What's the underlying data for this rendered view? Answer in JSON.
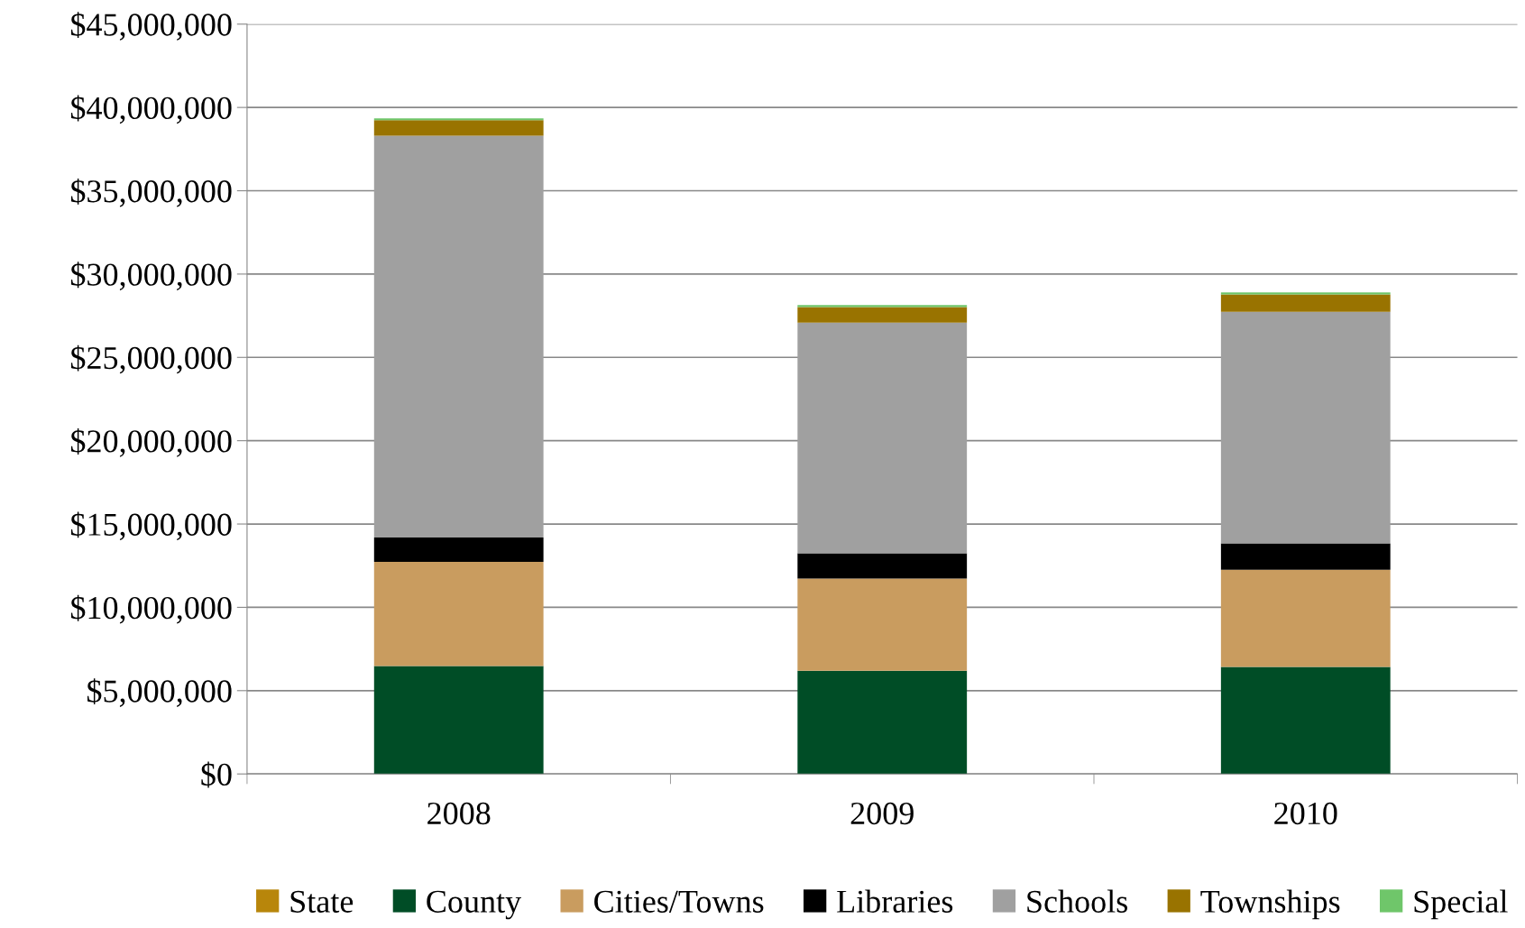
{
  "chart_data": {
    "type": "bar",
    "stacked": true,
    "categories": [
      "2008",
      "2009",
      "2010"
    ],
    "series": [
      {
        "name": "State",
        "color": "#b8860b",
        "values": [
          0,
          0,
          0
        ]
      },
      {
        "name": "County",
        "color": "#004d26",
        "values": [
          6480000,
          6190000,
          6420000
        ]
      },
      {
        "name": "Cities/Towns",
        "color": "#c99c5f",
        "values": [
          6250000,
          5540000,
          5840000
        ]
      },
      {
        "name": "Libraries",
        "color": "#000000",
        "values": [
          1460000,
          1520000,
          1580000
        ]
      },
      {
        "name": "Schools",
        "color": "#a0a0a0",
        "values": [
          24110000,
          13840000,
          13890000
        ]
      },
      {
        "name": "Townships",
        "color": "#997300",
        "values": [
          930000,
          930000,
          1050000
        ]
      },
      {
        "name": "Special",
        "color": "#6fc66a",
        "values": [
          120000,
          120000,
          120000
        ]
      }
    ],
    "ylim": [
      0,
      45000000
    ],
    "yticks": [
      {
        "value": 0,
        "label": "$0"
      },
      {
        "value": 5000000,
        "label": "$5,000,000"
      },
      {
        "value": 10000000,
        "label": "$10,000,000"
      },
      {
        "value": 15000000,
        "label": "$15,000,000"
      },
      {
        "value": 20000000,
        "label": "$20,000,000"
      },
      {
        "value": 25000000,
        "label": "$25,000,000"
      },
      {
        "value": 30000000,
        "label": "$30,000,000"
      },
      {
        "value": 35000000,
        "label": "$35,000,000"
      },
      {
        "value": 40000000,
        "label": "$40,000,000"
      },
      {
        "value": 45000000,
        "label": "$45,000,000"
      }
    ],
    "grid": "y",
    "legend": "bottom"
  }
}
